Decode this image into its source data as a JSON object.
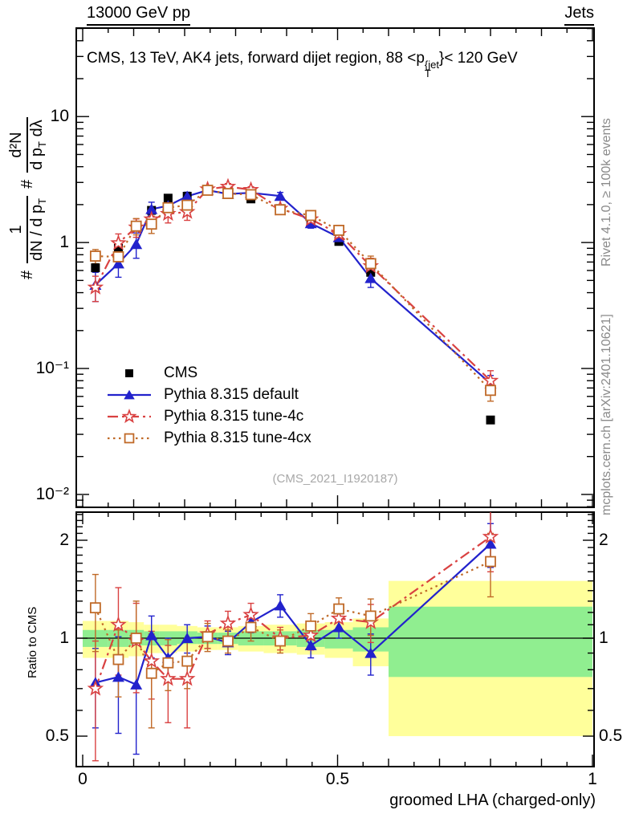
{
  "header": {
    "left": "13000 GeV pp",
    "right": "Jets"
  },
  "title": {
    "prefix": "CMS, 13 TeV, AK4 jets, forward dijet region, 88 <p",
    "sup": "{jet",
    "sub": "T",
    "suffix": "}< 120 GeV"
  },
  "y_axis_formula": {
    "hash": "#",
    "frac1": {
      "num": "1",
      "den_pre": "dN / d p",
      "den_sub": "T"
    },
    "frac2": {
      "num": "d²N",
      "den_pre": "d p",
      "den_sub": "T",
      "den_post": " dλ"
    }
  },
  "side_notes": {
    "top": "Rivet 4.1.0, ≥ 100k events",
    "bottom": "mcplots.cern.ch [arXiv:2401.10621]"
  },
  "watermark": "(CMS_2021_I1920187)",
  "ratio_label": "Ratio to CMS",
  "x_axis": {
    "title": "groomed LHA (charged-only)",
    "ticks": [
      {
        "v": 0,
        "label": "0"
      },
      {
        "v": 0.5,
        "label": "0.5"
      },
      {
        "v": 1,
        "label": "1"
      }
    ]
  },
  "main_y_axis": {
    "ylim": [
      0.0079,
      50.4
    ],
    "ticks": [
      {
        "v": 10,
        "label": "10"
      },
      {
        "v": 1,
        "label": "1"
      },
      {
        "v": 0.1,
        "label": "10⁻¹"
      },
      {
        "v": 0.01,
        "label": "10⁻²"
      }
    ]
  },
  "ratio_y_axis": {
    "ylim": [
      0.403,
      2.44
    ],
    "ticks": [
      {
        "v": 2,
        "label": "2"
      },
      {
        "v": 1,
        "label": "1"
      },
      {
        "v": 0.5,
        "label": "0.5"
      }
    ]
  },
  "chart_data": {
    "type": "line",
    "title": "CMS, 13 TeV, AK4 jets, forward dijet region, 88 <pT(jet)< 120 GeV",
    "xlabel": "groomed LHA (charged-only)",
    "ylabel": "# 1/(dN/dpT) # d²N/(dpT dλ)",
    "xlim": [
      0,
      1
    ],
    "x": [
      0.025,
      0.07,
      0.105,
      0.135,
      0.1675,
      0.205,
      0.245,
      0.285,
      0.33,
      0.3875,
      0.4475,
      0.5025,
      0.565,
      0.8
    ],
    "bin_edges": [
      0,
      0.05,
      0.09,
      0.12,
      0.15,
      0.185,
      0.225,
      0.265,
      0.305,
      0.355,
      0.42,
      0.475,
      0.53,
      0.6,
      1.0
    ],
    "series": [
      {
        "name": "CMS",
        "color": "#000000",
        "marker": "square-filled",
        "line": "none",
        "values": [
          0.63,
          0.9,
          1.35,
          1.8,
          2.25,
          2.33,
          2.57,
          2.5,
          2.22,
          1.86,
          1.5,
          1.02,
          0.58,
          0.039
        ],
        "errors": null
      },
      {
        "name": "Pythia 8.315 default",
        "color": "#2222cc",
        "marker": "triangle-filled",
        "line": "solid",
        "values": [
          0.46,
          0.68,
          0.97,
          1.84,
          1.96,
          2.33,
          2.6,
          2.43,
          2.48,
          2.34,
          1.42,
          1.1,
          0.52,
          0.076
        ],
        "errors": [
          0.12,
          0.15,
          0.22,
          0.25,
          0.25,
          0.18,
          0.14,
          0.13,
          0.15,
          0.16,
          0.12,
          0.1,
          0.08,
          0.012
        ]
      },
      {
        "name": "Pythia 8.315 tune-4c",
        "color": "#d94141",
        "marker": "star-open",
        "line": "dashdot",
        "values": [
          0.44,
          0.99,
          1.32,
          1.53,
          1.69,
          1.75,
          2.65,
          2.78,
          2.62,
          1.86,
          1.53,
          1.17,
          0.65,
          0.08
        ],
        "errors": [
          0.1,
          0.18,
          0.22,
          0.22,
          0.26,
          0.25,
          0.16,
          0.16,
          0.15,
          0.12,
          0.12,
          0.12,
          0.1,
          0.016
        ]
      },
      {
        "name": "Pythia 8.315 tune-4cx",
        "color": "#c06a28",
        "marker": "square-open",
        "line": "dotted",
        "values": [
          0.78,
          0.77,
          1.35,
          1.4,
          1.89,
          1.98,
          2.6,
          2.45,
          2.4,
          1.82,
          1.64,
          1.25,
          0.68,
          0.067
        ],
        "errors": [
          0.1,
          0.12,
          0.2,
          0.22,
          0.24,
          0.2,
          0.16,
          0.13,
          0.13,
          0.12,
          0.13,
          0.12,
          0.1,
          0.012
        ]
      }
    ],
    "ratio": {
      "reference": 1,
      "series": [
        {
          "name": "Pythia 8.315 default",
          "values": [
            0.73,
            0.76,
            0.72,
            1.02,
            0.87,
            1.0,
            1.01,
            0.97,
            1.12,
            1.26,
            0.95,
            1.08,
            0.9,
            1.95
          ],
          "errors": [
            0.2,
            0.25,
            0.28,
            0.15,
            0.13,
            0.1,
            0.08,
            0.08,
            0.08,
            0.1,
            0.08,
            0.08,
            0.13,
            0.3
          ]
        },
        {
          "name": "Pythia 8.315 tune-4c",
          "values": [
            0.7,
            1.1,
            0.98,
            0.85,
            0.75,
            0.75,
            1.03,
            1.11,
            1.18,
            1.0,
            1.02,
            1.15,
            1.12,
            2.05
          ],
          "errors": [
            0.28,
            0.33,
            0.3,
            0.2,
            0.2,
            0.22,
            0.1,
            0.1,
            0.1,
            0.08,
            0.1,
            0.1,
            0.15,
            0.45
          ]
        },
        {
          "name": "Pythia 8.315 tune-4cx",
          "values": [
            1.24,
            0.86,
            1.0,
            0.78,
            0.84,
            0.85,
            1.01,
            0.98,
            1.08,
            0.98,
            1.09,
            1.23,
            1.17,
            1.72
          ],
          "errors": [
            0.33,
            0.2,
            0.3,
            0.25,
            0.15,
            0.15,
            0.1,
            0.08,
            0.1,
            0.08,
            0.1,
            0.1,
            0.15,
            0.38
          ]
        }
      ],
      "bands": [
        {
          "x0": 0.0,
          "x1": 0.05,
          "yellow": [
            0.87,
            1.13
          ],
          "green": [
            0.94,
            1.06
          ]
        },
        {
          "x0": 0.05,
          "x1": 0.09,
          "yellow": [
            0.87,
            1.13
          ],
          "green": [
            0.94,
            1.06
          ]
        },
        {
          "x0": 0.09,
          "x1": 0.12,
          "yellow": [
            0.88,
            1.12
          ],
          "green": [
            0.95,
            1.06
          ]
        },
        {
          "x0": 0.12,
          "x1": 0.15,
          "yellow": [
            0.9,
            1.1
          ],
          "green": [
            0.95,
            1.05
          ]
        },
        {
          "x0": 0.15,
          "x1": 0.185,
          "yellow": [
            0.9,
            1.1
          ],
          "green": [
            0.95,
            1.05
          ]
        },
        {
          "x0": 0.185,
          "x1": 0.225,
          "yellow": [
            0.91,
            1.09
          ],
          "green": [
            0.96,
            1.05
          ]
        },
        {
          "x0": 0.225,
          "x1": 0.265,
          "yellow": [
            0.92,
            1.08
          ],
          "green": [
            0.96,
            1.04
          ]
        },
        {
          "x0": 0.265,
          "x1": 0.305,
          "yellow": [
            0.92,
            1.08
          ],
          "green": [
            0.96,
            1.04
          ]
        },
        {
          "x0": 0.305,
          "x1": 0.355,
          "yellow": [
            0.91,
            1.09
          ],
          "green": [
            0.95,
            1.05
          ]
        },
        {
          "x0": 0.355,
          "x1": 0.42,
          "yellow": [
            0.9,
            1.1
          ],
          "green": [
            0.95,
            1.05
          ]
        },
        {
          "x0": 0.42,
          "x1": 0.475,
          "yellow": [
            0.89,
            1.11
          ],
          "green": [
            0.94,
            1.06
          ]
        },
        {
          "x0": 0.475,
          "x1": 0.53,
          "yellow": [
            0.87,
            1.12
          ],
          "green": [
            0.93,
            1.06
          ]
        },
        {
          "x0": 0.53,
          "x1": 0.6,
          "yellow": [
            0.82,
            1.15
          ],
          "green": [
            0.91,
            1.08
          ]
        },
        {
          "x0": 0.6,
          "x1": 1.0,
          "yellow": [
            0.5,
            1.5
          ],
          "green": [
            0.76,
            1.25
          ]
        }
      ]
    },
    "legend_position": "middle-left",
    "grid": false
  }
}
